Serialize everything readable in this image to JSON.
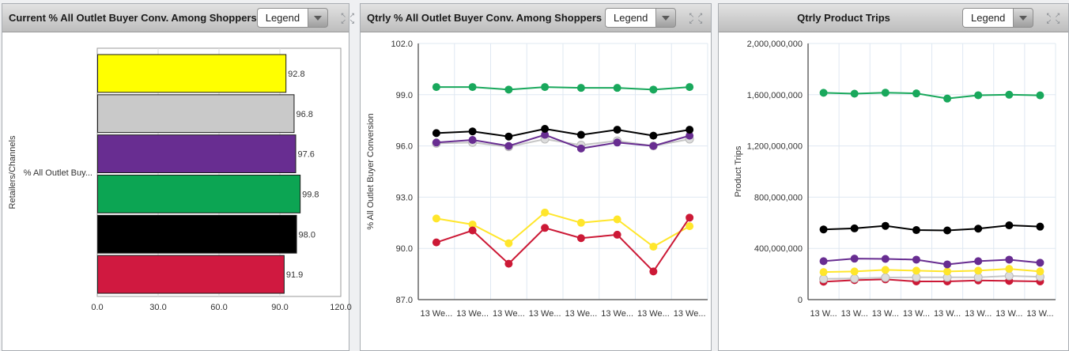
{
  "icons": {
    "expand": [
      "↖",
      "↗",
      "↙",
      "↘"
    ]
  },
  "panels": [
    {
      "title": "Current % All Outlet Buyer Conv. Among Shoppers",
      "legend_label": "Legend",
      "chart_data": {
        "type": "bar",
        "orientation": "horizontal",
        "title": "Current % All Outlet Buyer Conv. Among Shoppers",
        "ylabel": "Retailers/Channels",
        "category_label": "% All Outlet Buy...",
        "xlim": [
          0,
          120
        ],
        "grid": true,
        "xticks": [
          {
            "v": 0,
            "label": "0.0"
          },
          {
            "v": 30,
            "label": "30.0"
          },
          {
            "v": 60,
            "label": "60.0"
          },
          {
            "v": 90,
            "label": "90.0"
          },
          {
            "v": 120,
            "label": "120.0"
          }
        ],
        "bars": [
          {
            "name": "yellow",
            "color": "#ffff00",
            "value": 92.8,
            "label": "92.8"
          },
          {
            "name": "silver",
            "color": "#c9c9c9",
            "value": 96.8,
            "label": "96.8"
          },
          {
            "name": "purple",
            "color": "#682d91",
            "value": 97.6,
            "label": "97.6"
          },
          {
            "name": "green",
            "color": "#0ca553",
            "value": 99.8,
            "label": "99.8"
          },
          {
            "name": "black",
            "color": "#000000",
            "value": 98.0,
            "label": "98.0"
          },
          {
            "name": "red",
            "color": "#d01940",
            "value": 91.9,
            "label": "91.9"
          }
        ]
      }
    },
    {
      "title": "Qtrly % All Outlet Buyer Conv. Among Shoppers",
      "legend_label": "Legend",
      "chart_data": {
        "type": "line",
        "title": "Qtrly % All Outlet Buyer Conv. Among Shoppers",
        "ylabel": "% All Outlet Buyer Conversion",
        "ylim": [
          87,
          102
        ],
        "grid": true,
        "yticks": [
          {
            "v": 87,
            "label": "87.0"
          },
          {
            "v": 90,
            "label": "90.0"
          },
          {
            "v": 93,
            "label": "93.0"
          },
          {
            "v": 96,
            "label": "96.0"
          },
          {
            "v": 99,
            "label": "99.0"
          },
          {
            "v": 102,
            "label": "102.0"
          }
        ],
        "categories": [
          "13 We...",
          "13 We...",
          "13 We...",
          "13 We...",
          "13 We...",
          "13 We...",
          "13 We...",
          "13 We..."
        ],
        "series": [
          {
            "name": "silver",
            "color": "#c6c6c6",
            "marker": "#dcdcdc",
            "values": [
              96.15,
              96.2,
              95.95,
              96.4,
              96.05,
              96.3,
              96.0,
              96.4
            ]
          },
          {
            "name": "purple",
            "color": "#682d91",
            "values": [
              96.2,
              96.35,
              96.0,
              96.65,
              95.85,
              96.2,
              96.0,
              96.6
            ]
          },
          {
            "name": "black",
            "color": "#000000",
            "values": [
              96.75,
              96.85,
              96.55,
              97.0,
              96.65,
              96.95,
              96.6,
              96.95
            ]
          },
          {
            "name": "green",
            "color": "#19a85c",
            "values": [
              99.45,
              99.45,
              99.3,
              99.45,
              99.4,
              99.4,
              99.3,
              99.45
            ]
          },
          {
            "name": "yellow",
            "color": "#ffe62b",
            "values": [
              91.75,
              91.4,
              90.3,
              92.1,
              91.5,
              91.7,
              90.1,
              91.3
            ]
          },
          {
            "name": "red",
            "color": "#cc1936",
            "values": [
              90.35,
              91.05,
              89.1,
              91.2,
              90.6,
              90.8,
              88.65,
              91.8
            ]
          }
        ]
      }
    },
    {
      "title": "Qtrly Product Trips",
      "legend_label": "Legend",
      "chart_data": {
        "type": "line",
        "title": "Qtrly Product Trips",
        "ylabel": "Product Trips",
        "ylim": [
          0,
          2000000000
        ],
        "grid": true,
        "yticks": [
          {
            "v": 0,
            "label": "0"
          },
          {
            "v": 400000000,
            "label": "400,000,000"
          },
          {
            "v": 800000000,
            "label": "800,000,000"
          },
          {
            "v": 1200000000,
            "label": "1,200,000,000"
          },
          {
            "v": 1600000000,
            "label": "1,600,000,000"
          },
          {
            "v": 2000000000,
            "label": "2,000,000,000"
          }
        ],
        "categories": [
          "13 W...",
          "13 W...",
          "13 W...",
          "13 W...",
          "13 W...",
          "13 W...",
          "13 W...",
          "13 W..."
        ],
        "series": [
          {
            "name": "red",
            "color": "#cc1936",
            "values": [
              140000000,
              152000000,
              158000000,
              142000000,
              142000000,
              150000000,
              146000000,
              142000000
            ]
          },
          {
            "name": "silver",
            "color": "#c6c6c6",
            "marker": "#dcdcdc",
            "values": [
              162000000,
              165000000,
              172000000,
              174000000,
              174000000,
              174000000,
              185000000,
              178000000
            ]
          },
          {
            "name": "yellow",
            "color": "#ffe62b",
            "values": [
              215000000,
              220000000,
              232000000,
              226000000,
              220000000,
              226000000,
              240000000,
              220000000
            ]
          },
          {
            "name": "purple",
            "color": "#682d91",
            "values": [
              300000000,
              320000000,
              318000000,
              312000000,
              275000000,
              300000000,
              312000000,
              288000000
            ]
          },
          {
            "name": "black",
            "color": "#000000",
            "values": [
              548000000,
              556000000,
              576000000,
              543000000,
              540000000,
              554000000,
              580000000,
              570000000
            ]
          },
          {
            "name": "green",
            "color": "#19a85c",
            "values": [
              1615000000,
              1608000000,
              1616000000,
              1610000000,
              1570000000,
              1596000000,
              1600000000,
              1595000000
            ]
          }
        ]
      }
    }
  ]
}
